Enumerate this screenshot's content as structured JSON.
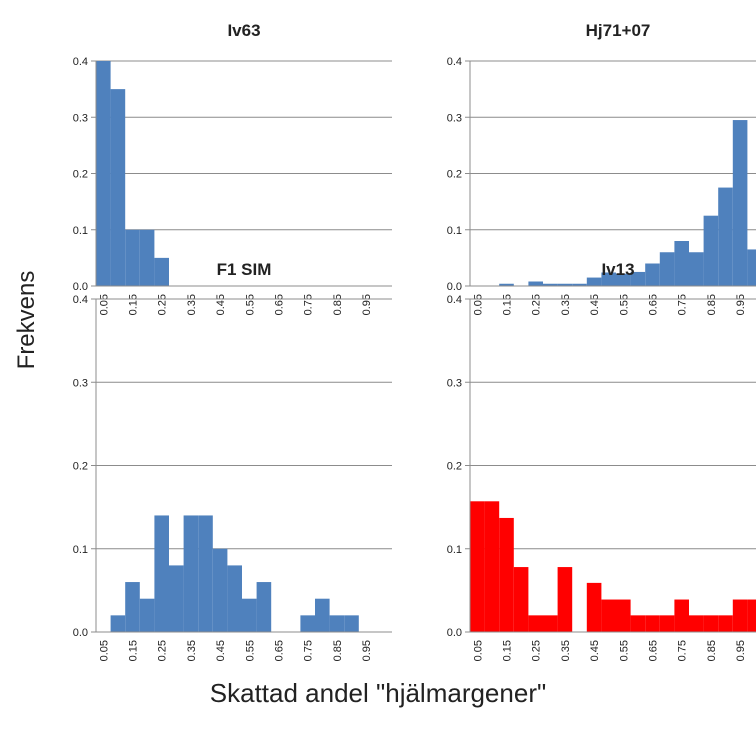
{
  "figure": {
    "ylabel": "Frekvens",
    "xlabel": "Skattad andel \"hjälmargener\""
  },
  "chart_data": [
    {
      "type": "bar",
      "title": "Iv63",
      "color": "#4f81bd",
      "categories": [
        "0.05",
        "0.10",
        "0.15",
        "0.20",
        "0.25",
        "0.30",
        "0.35",
        "0.40",
        "0.45",
        "0.50",
        "0.55",
        "0.60",
        "0.65",
        "0.70",
        "0.75",
        "0.80",
        "0.85",
        "0.90",
        "0.95",
        "1.00"
      ],
      "tick_labels": [
        "0.05",
        "0.15",
        "0.25",
        "0.35",
        "0.45",
        "0.55",
        "0.65",
        "0.75",
        "0.85",
        "0.95"
      ],
      "values": [
        0.4,
        0.35,
        0.1,
        0.1,
        0.05,
        0,
        0,
        0,
        0,
        0,
        0,
        0,
        0,
        0,
        0,
        0,
        0,
        0,
        0,
        0
      ],
      "ylim": [
        0,
        0.4
      ],
      "yticks": [
        "0.0",
        "0.1",
        "0.2",
        "0.3",
        "0.4"
      ],
      "grid": true
    },
    {
      "type": "bar",
      "title": "Hj71+07",
      "color": "#4f81bd",
      "categories": [
        "0.05",
        "0.10",
        "0.15",
        "0.20",
        "0.25",
        "0.30",
        "0.35",
        "0.40",
        "0.45",
        "0.50",
        "0.55",
        "0.60",
        "0.65",
        "0.70",
        "0.75",
        "0.80",
        "0.85",
        "0.90",
        "0.95",
        "1.00"
      ],
      "tick_labels": [
        "0.05",
        "0.15",
        "0.25",
        "0.35",
        "0.45",
        "0.55",
        "0.65",
        "0.75",
        "0.85",
        "0.95"
      ],
      "values": [
        0,
        0,
        0.004,
        0,
        0.008,
        0.004,
        0.004,
        0.004,
        0.015,
        0.024,
        0.022,
        0.025,
        0.04,
        0.06,
        0.08,
        0.06,
        0.125,
        0.175,
        0.295,
        0.065
      ],
      "ylim": [
        0,
        0.4
      ],
      "yticks": [
        "0.0",
        "0.1",
        "0.2",
        "0.3",
        "0.4"
      ],
      "grid": true
    },
    {
      "type": "bar",
      "title": "F1 SIM",
      "color": "#4f81bd",
      "categories": [
        "0.05",
        "0.10",
        "0.15",
        "0.20",
        "0.25",
        "0.30",
        "0.35",
        "0.40",
        "0.45",
        "0.50",
        "0.55",
        "0.60",
        "0.65",
        "0.70",
        "0.75",
        "0.80",
        "0.85",
        "0.90",
        "0.95"
      ],
      "tick_labels": [
        "0.05",
        "0.15",
        "0.25",
        "0.35",
        "0.45",
        "0.55",
        "0.65",
        "0.75",
        "0.85",
        "0.95"
      ],
      "values": [
        0,
        0.02,
        0.06,
        0.04,
        0.14,
        0.08,
        0.14,
        0.14,
        0.1,
        0.08,
        0.04,
        0.06,
        0,
        0,
        0.02,
        0.04,
        0.02,
        0.02,
        0
      ],
      "ylim": [
        0,
        0.4
      ],
      "yticks": [
        "0.0",
        "0.1",
        "0.2",
        "0.3",
        "0.4"
      ],
      "grid": true
    },
    {
      "type": "bar",
      "title": "Iv13",
      "color": "#ff0000",
      "categories": [
        "0.05",
        "0.10",
        "0.15",
        "0.20",
        "0.25",
        "0.30",
        "0.35",
        "0.40",
        "0.45",
        "0.50",
        "0.55",
        "0.60",
        "0.65",
        "0.70",
        "0.75",
        "0.80",
        "0.85",
        "0.90",
        "0.95",
        "1.00"
      ],
      "tick_labels": [
        "0.05",
        "0.15",
        "0.25",
        "0.35",
        "0.45",
        "0.55",
        "0.65",
        "0.75",
        "0.85",
        "0.95"
      ],
      "values": [
        0.157,
        0.157,
        0.137,
        0.078,
        0.02,
        0.02,
        0.078,
        0,
        0.059,
        0.039,
        0.039,
        0.02,
        0.02,
        0.02,
        0.039,
        0.02,
        0.02,
        0.02,
        0.039,
        0.039
      ],
      "ylim": [
        0,
        0.4
      ],
      "yticks": [
        "0.0",
        "0.1",
        "0.2",
        "0.3",
        "0.4"
      ],
      "grid": true
    }
  ]
}
